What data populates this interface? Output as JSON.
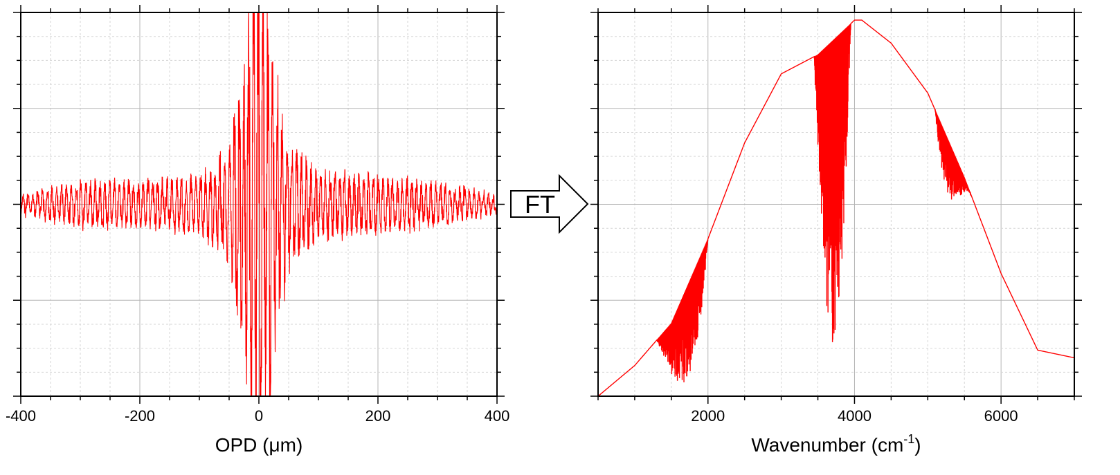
{
  "chart_data": [
    {
      "type": "line",
      "title": "",
      "xlabel": "OPD (μm)",
      "ylabel": "",
      "xlim": [
        -400,
        400
      ],
      "ylim": [
        -1,
        1
      ],
      "x_ticks": [
        -400,
        -200,
        0,
        200,
        400
      ],
      "x_tick_labels": [
        "-400",
        "-200",
        "0",
        "200",
        "400"
      ],
      "y_tick_labels_shown": false,
      "grid": true,
      "line_color": "#ff0000",
      "series": [
        {
          "kind": "interferogram",
          "description_points": {
            "x": [
              -400,
              -300,
              -200,
              -100,
              -50,
              -20,
              0,
              20,
              50,
              100,
              200,
              300,
              400
            ],
            "envelope": [
              0.06,
              0.13,
              0.14,
              0.16,
              0.33,
              1.0,
              1.0,
              1.0,
              0.38,
              0.2,
              0.17,
              0.13,
              0.05
            ]
          }
        }
      ]
    },
    {
      "type": "line",
      "title": "",
      "xlabel": "Wavenumber (cm",
      "xlabel_superscript": "-1",
      "xlabel_suffix": ")",
      "ylabel": "",
      "xlim": [
        500,
        7000
      ],
      "ylim": [
        0,
        1
      ],
      "x_ticks": [
        2000,
        4000,
        6000
      ],
      "x_tick_labels": [
        "2000",
        "4000",
        "6000"
      ],
      "y_tick_labels_shown": false,
      "grid": true,
      "line_color": "#ff0000",
      "series": [
        {
          "kind": "spectrum",
          "x": [
            500,
            1000,
            1500,
            2000,
            2500,
            3000,
            3300,
            3500,
            4000,
            4100,
            4500,
            5000,
            5500,
            6000,
            6500,
            7000
          ],
          "y": [
            0.0,
            0.08,
            0.19,
            0.41,
            0.66,
            0.84,
            0.87,
            0.89,
            0.98,
            0.98,
            0.92,
            0.79,
            0.57,
            0.32,
            0.12,
            0.1
          ],
          "absorption_bands": [
            {
              "from": 1300,
              "to": 2000,
              "min_y": 0.03
            },
            {
              "from": 3450,
              "to": 3950,
              "min_y": 0.14
            },
            {
              "from": 5100,
              "to": 5600,
              "min_y": 0.51
            }
          ]
        }
      ]
    }
  ],
  "arrow": {
    "label": "FT"
  }
}
